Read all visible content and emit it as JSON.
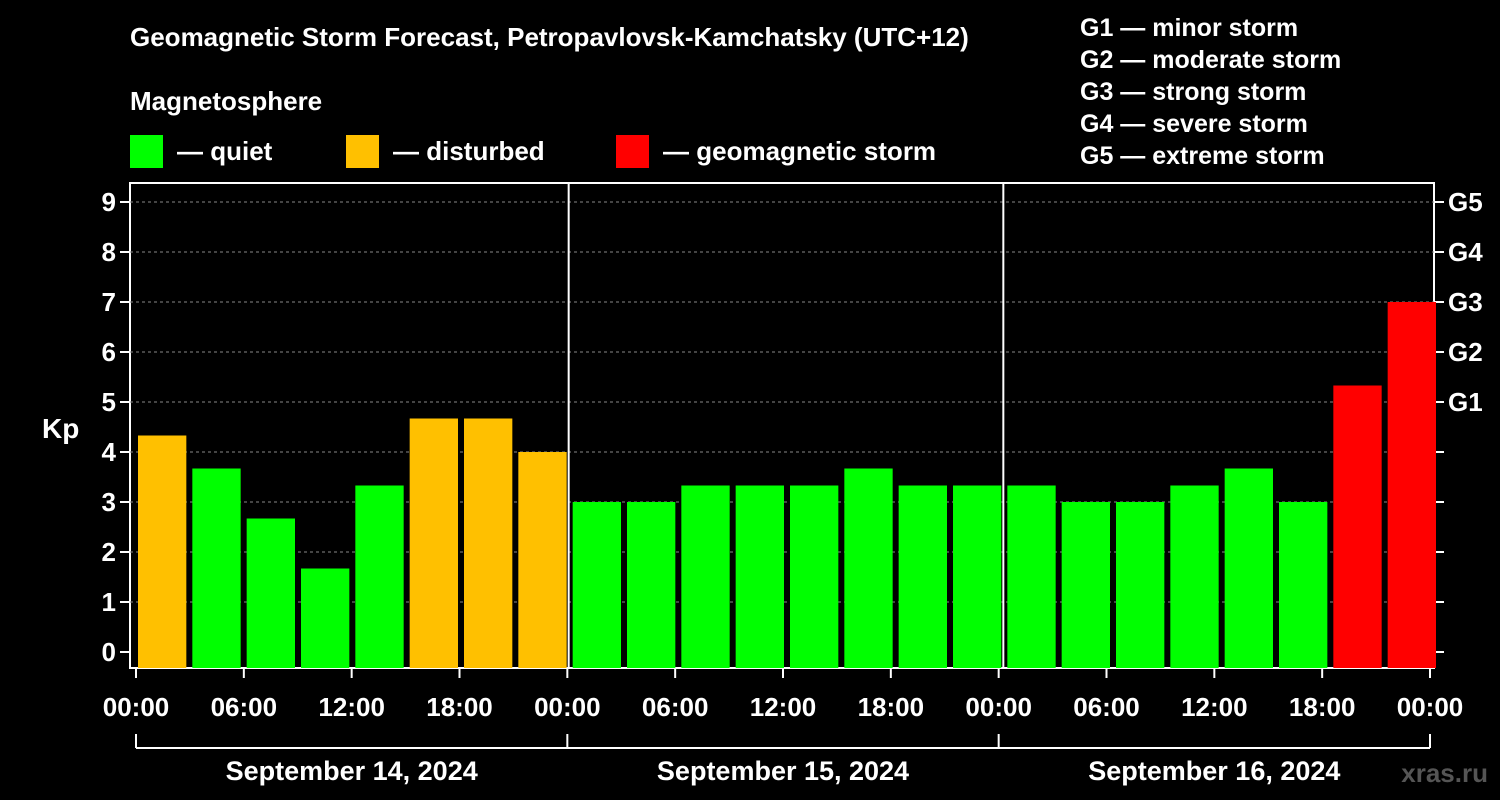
{
  "title": "Geomagnetic Storm Forecast, Petropavlovsk-Kamchatsky (UTC+12)",
  "legend": {
    "heading": "Magnetosphere",
    "items": [
      {
        "label": "— quiet",
        "color": "#00ff00"
      },
      {
        "label": "— disturbed",
        "color": "#ffc000"
      },
      {
        "label": "— geomagnetic storm",
        "color": "#ff0000"
      }
    ]
  },
  "storm_scale": [
    "G1 — minor storm",
    "G2 — moderate storm",
    "G3 — strong storm",
    "G4 — severe storm",
    "G5 — extreme storm"
  ],
  "watermark": "xras.ru",
  "chart_data": {
    "type": "bar",
    "ylabel": "Kp",
    "ylim": [
      0,
      9
    ],
    "yticks": [
      0,
      1,
      2,
      3,
      4,
      5,
      6,
      7,
      8,
      9
    ],
    "right_axis_labels": [
      {
        "value": 5,
        "label": "G1"
      },
      {
        "value": 6,
        "label": "G2"
      },
      {
        "value": 7,
        "label": "G3"
      },
      {
        "value": 8,
        "label": "G4"
      },
      {
        "value": 9,
        "label": "G5"
      }
    ],
    "xticks": [
      "00:00",
      "06:00",
      "12:00",
      "18:00",
      "00:00",
      "06:00",
      "12:00",
      "18:00",
      "00:00",
      "06:00",
      "12:00",
      "18:00",
      "00:00"
    ],
    "days": [
      "September 14, 2024",
      "September 15, 2024",
      "September 16, 2024"
    ],
    "interval_hours": 3,
    "values": [
      4.33,
      3.67,
      2.67,
      1.67,
      3.33,
      4.67,
      4.67,
      4.0,
      3.0,
      3.0,
      3.33,
      3.33,
      3.33,
      3.67,
      3.33,
      3.33,
      3.33,
      3.0,
      3.0,
      3.33,
      3.67,
      3.0,
      5.33,
      7.0
    ],
    "bar_colors": [
      "#ffc000",
      "#00ff00",
      "#00ff00",
      "#00ff00",
      "#00ff00",
      "#ffc000",
      "#ffc000",
      "#ffc000",
      "#00ff00",
      "#00ff00",
      "#00ff00",
      "#00ff00",
      "#00ff00",
      "#00ff00",
      "#00ff00",
      "#00ff00",
      "#00ff00",
      "#00ff00",
      "#00ff00",
      "#00ff00",
      "#00ff00",
      "#00ff00",
      "#ff0000",
      "#ff0000"
    ],
    "grid": true
  }
}
